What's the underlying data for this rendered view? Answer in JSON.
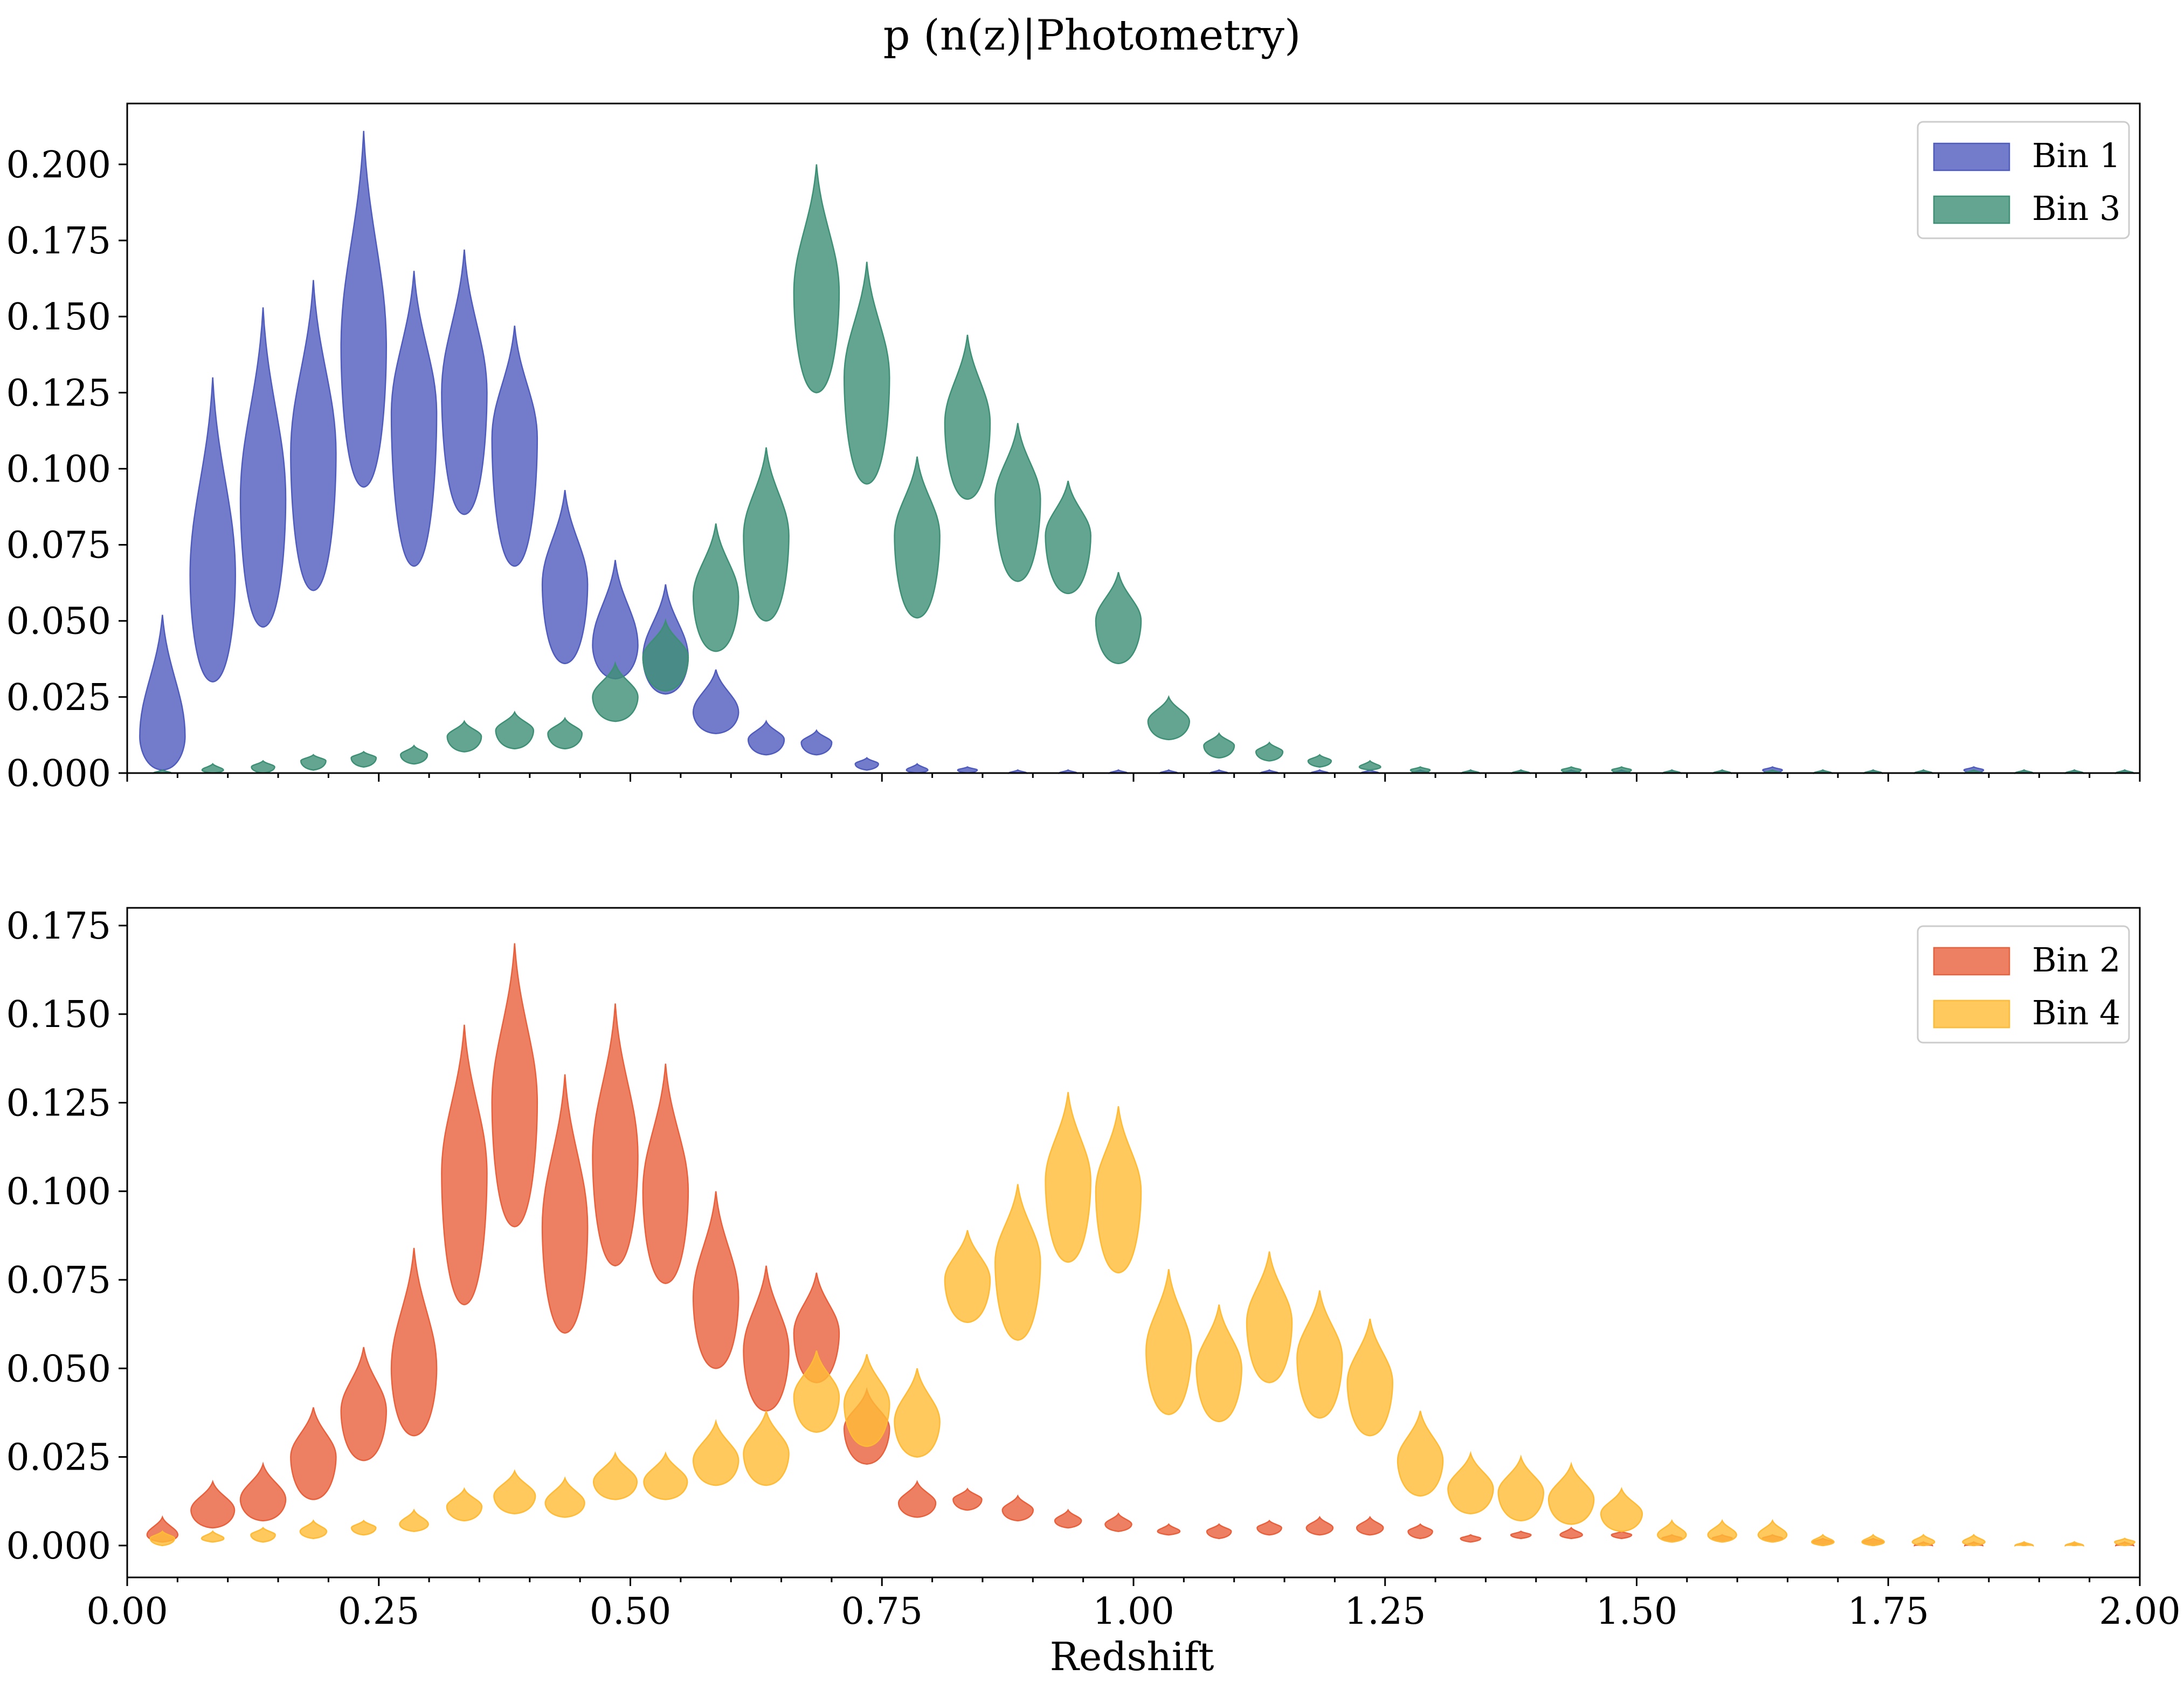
{
  "title": "p (n(z)|Photometry)",
  "xlabel": "Redshift",
  "colors": {
    "bin1": "#4f5bbd",
    "bin2": "#e8603c",
    "bin3": "#3d8f75",
    "bin4": "#ffbb36"
  },
  "chart_data": [
    {
      "type": "violin",
      "panel": "top",
      "xlim": [
        0,
        2.0
      ],
      "ylim": [
        0,
        0.22
      ],
      "yticks": [
        "0.000",
        "0.025",
        "0.050",
        "0.075",
        "0.100",
        "0.125",
        "0.150",
        "0.175",
        "0.200"
      ],
      "ytick_values": [
        0,
        0.025,
        0.05,
        0.075,
        0.1,
        0.125,
        0.15,
        0.175,
        0.2
      ],
      "grid": false,
      "legend_position": "top-right",
      "series": [
        {
          "name": "Bin 1",
          "color": "#4f5bbd",
          "x": [
            0.035,
            0.085,
            0.135,
            0.185,
            0.235,
            0.285,
            0.335,
            0.385,
            0.435,
            0.485,
            0.535,
            0.585,
            0.635,
            0.685,
            0.735,
            0.785,
            0.835,
            0.885,
            0.935,
            0.985,
            1.035,
            1.085,
            1.135,
            1.185,
            1.235,
            1.285,
            1.335,
            1.385,
            1.435,
            1.485,
            1.535,
            1.585,
            1.635,
            1.685,
            1.735,
            1.785,
            1.835,
            1.885,
            1.935,
            1.985
          ],
          "min": [
            0.001,
            0.03,
            0.048,
            0.06,
            0.094,
            0.068,
            0.085,
            0.068,
            0.036,
            0.031,
            0.026,
            0.013,
            0.006,
            0.006,
            0.001,
            0,
            0,
            0,
            0,
            0,
            0,
            0,
            0,
            0,
            0,
            0,
            0,
            0,
            0,
            0,
            0,
            0,
            0,
            0,
            0,
            0,
            0,
            0,
            0,
            0
          ],
          "max": [
            0.052,
            0.13,
            0.153,
            0.162,
            0.211,
            0.165,
            0.172,
            0.147,
            0.093,
            0.07,
            0.062,
            0.034,
            0.017,
            0.014,
            0.005,
            0.003,
            0.002,
            0.001,
            0.001,
            0.001,
            0.001,
            0.001,
            0.001,
            0.001,
            0.001,
            0.001,
            0.001,
            0.001,
            0.001,
            0.001,
            0.001,
            0.001,
            0.002,
            0.001,
            0.001,
            0.001,
            0.002,
            0.001,
            0.001,
            0.001
          ],
          "mode": [
            0.012,
            0.065,
            0.09,
            0.105,
            0.14,
            0.118,
            0.125,
            0.11,
            0.062,
            0.042,
            0.038,
            0.02,
            0.011,
            0.01,
            0.003,
            0.001,
            0.001,
            0,
            0,
            0,
            0,
            0,
            0,
            0,
            0,
            0,
            0,
            0,
            0,
            0,
            0,
            0,
            0.001,
            0,
            0,
            0,
            0.001,
            0,
            0,
            0
          ]
        },
        {
          "name": "Bin 3",
          "color": "#3d8f75",
          "x": [
            0.035,
            0.085,
            0.135,
            0.185,
            0.235,
            0.285,
            0.335,
            0.385,
            0.435,
            0.485,
            0.535,
            0.585,
            0.635,
            0.685,
            0.735,
            0.785,
            0.835,
            0.885,
            0.935,
            0.985,
            1.035,
            1.085,
            1.135,
            1.185,
            1.235,
            1.285,
            1.335,
            1.385,
            1.435,
            1.485,
            1.535,
            1.585,
            1.635,
            1.685,
            1.735,
            1.785,
            1.835,
            1.885,
            1.935,
            1.985
          ],
          "min": [
            0,
            0,
            0,
            0.001,
            0.002,
            0.003,
            0.007,
            0.008,
            0.008,
            0.017,
            0.027,
            0.04,
            0.05,
            0.125,
            0.095,
            0.051,
            0.09,
            0.063,
            0.059,
            0.036,
            0.011,
            0.005,
            0.004,
            0.002,
            0.001,
            0,
            0,
            0,
            0,
            0,
            0,
            0,
            0,
            0,
            0,
            0,
            0,
            0,
            0,
            0
          ],
          "max": [
            0.001,
            0.003,
            0.004,
            0.006,
            0.007,
            0.009,
            0.017,
            0.02,
            0.018,
            0.036,
            0.05,
            0.082,
            0.107,
            0.2,
            0.168,
            0.104,
            0.144,
            0.115,
            0.096,
            0.066,
            0.025,
            0.013,
            0.01,
            0.006,
            0.004,
            0.002,
            0.001,
            0.001,
            0.002,
            0.002,
            0.001,
            0.001,
            0.001,
            0.001,
            0.001,
            0.001,
            0.001,
            0.001,
            0.001,
            0.001
          ],
          "mode": [
            0,
            0.001,
            0.002,
            0.004,
            0.005,
            0.006,
            0.012,
            0.014,
            0.013,
            0.025,
            0.038,
            0.058,
            0.078,
            0.158,
            0.13,
            0.078,
            0.115,
            0.09,
            0.078,
            0.05,
            0.017,
            0.009,
            0.007,
            0.004,
            0.002,
            0.001,
            0,
            0,
            0.001,
            0.001,
            0,
            0,
            0,
            0,
            0,
            0,
            0,
            0,
            0,
            0
          ]
        }
      ]
    },
    {
      "type": "violin",
      "panel": "bottom",
      "xlim": [
        0,
        2.0
      ],
      "ylim": [
        -0.009,
        0.18
      ],
      "xticks": [
        "0.00",
        "0.25",
        "0.50",
        "0.75",
        "1.00",
        "1.25",
        "1.50",
        "1.75",
        "2.00"
      ],
      "xtick_values": [
        0,
        0.25,
        0.5,
        0.75,
        1.0,
        1.25,
        1.5,
        1.75,
        2.0
      ],
      "yticks": [
        "0.000",
        "0.025",
        "0.050",
        "0.075",
        "0.100",
        "0.125",
        "0.150",
        "0.175"
      ],
      "ytick_values": [
        0,
        0.025,
        0.05,
        0.075,
        0.1,
        0.125,
        0.15,
        0.175
      ],
      "xlabel": "Redshift",
      "grid": false,
      "legend_position": "top-right",
      "series": [
        {
          "name": "Bin 2",
          "color": "#e8603c",
          "x": [
            0.035,
            0.085,
            0.135,
            0.185,
            0.235,
            0.285,
            0.335,
            0.385,
            0.435,
            0.485,
            0.535,
            0.585,
            0.635,
            0.685,
            0.735,
            0.785,
            0.835,
            0.885,
            0.935,
            0.985,
            1.035,
            1.085,
            1.135,
            1.185,
            1.235,
            1.285,
            1.335,
            1.385,
            1.435,
            1.485,
            1.535,
            1.585,
            1.635,
            1.685,
            1.735,
            1.785,
            1.835,
            1.885,
            1.935,
            1.985
          ],
          "min": [
            0.001,
            0.005,
            0.007,
            0.013,
            0.024,
            0.031,
            0.068,
            0.09,
            0.06,
            0.079,
            0.074,
            0.05,
            0.038,
            0.046,
            0.023,
            0.008,
            0.01,
            0.007,
            0.005,
            0.004,
            0.003,
            0.002,
            0.003,
            0.003,
            0.003,
            0.002,
            0.001,
            0.002,
            0.002,
            0.002,
            0.001,
            0.001,
            0.001,
            0,
            0,
            0,
            0,
            0,
            0,
            0
          ],
          "max": [
            0.008,
            0.018,
            0.023,
            0.039,
            0.056,
            0.084,
            0.147,
            0.17,
            0.133,
            0.153,
            0.136,
            0.1,
            0.079,
            0.077,
            0.044,
            0.018,
            0.016,
            0.014,
            0.01,
            0.009,
            0.006,
            0.006,
            0.007,
            0.008,
            0.008,
            0.006,
            0.003,
            0.004,
            0.005,
            0.004,
            0.003,
            0.003,
            0.003,
            0.002,
            0.002,
            0.001,
            0.001,
            0.001,
            0.001,
            0.001
          ],
          "mode": [
            0.003,
            0.01,
            0.013,
            0.025,
            0.038,
            0.05,
            0.105,
            0.125,
            0.09,
            0.11,
            0.1,
            0.07,
            0.055,
            0.06,
            0.033,
            0.012,
            0.013,
            0.01,
            0.007,
            0.006,
            0.004,
            0.004,
            0.005,
            0.005,
            0.005,
            0.004,
            0.002,
            0.003,
            0.003,
            0.003,
            0.002,
            0.002,
            0.002,
            0.001,
            0.001,
            0,
            0,
            0,
            0,
            0
          ]
        },
        {
          "name": "Bin 4",
          "color": "#ffbb36",
          "x": [
            0.035,
            0.085,
            0.135,
            0.185,
            0.235,
            0.285,
            0.335,
            0.385,
            0.435,
            0.485,
            0.535,
            0.585,
            0.635,
            0.685,
            0.735,
            0.785,
            0.835,
            0.885,
            0.935,
            0.985,
            1.035,
            1.085,
            1.135,
            1.185,
            1.235,
            1.285,
            1.335,
            1.385,
            1.435,
            1.485,
            1.535,
            1.585,
            1.635,
            1.685,
            1.735,
            1.785,
            1.835,
            1.885,
            1.935,
            1.985
          ],
          "min": [
            0,
            0.001,
            0.001,
            0.002,
            0.003,
            0.004,
            0.007,
            0.009,
            0.008,
            0.013,
            0.013,
            0.017,
            0.017,
            0.032,
            0.028,
            0.025,
            0.063,
            0.058,
            0.08,
            0.077,
            0.037,
            0.035,
            0.046,
            0.036,
            0.031,
            0.014,
            0.009,
            0.007,
            0.006,
            0.004,
            0.001,
            0.001,
            0.001,
            0,
            0,
            0,
            0,
            0,
            0,
            0
          ],
          "max": [
            0.004,
            0.004,
            0.005,
            0.007,
            0.007,
            0.01,
            0.016,
            0.021,
            0.019,
            0.026,
            0.026,
            0.035,
            0.038,
            0.055,
            0.054,
            0.05,
            0.089,
            0.102,
            0.128,
            0.124,
            0.078,
            0.068,
            0.083,
            0.072,
            0.064,
            0.038,
            0.026,
            0.025,
            0.023,
            0.016,
            0.007,
            0.007,
            0.007,
            0.003,
            0.003,
            0.003,
            0.003,
            0.001,
            0.001,
            0.002
          ],
          "mode": [
            0.002,
            0.002,
            0.003,
            0.004,
            0.005,
            0.006,
            0.011,
            0.014,
            0.012,
            0.018,
            0.018,
            0.024,
            0.026,
            0.042,
            0.04,
            0.035,
            0.075,
            0.08,
            0.103,
            0.1,
            0.055,
            0.05,
            0.063,
            0.053,
            0.046,
            0.024,
            0.016,
            0.015,
            0.013,
            0.009,
            0.003,
            0.003,
            0.003,
            0.001,
            0.001,
            0.001,
            0.001,
            0,
            0,
            0.001
          ]
        }
      ]
    }
  ]
}
